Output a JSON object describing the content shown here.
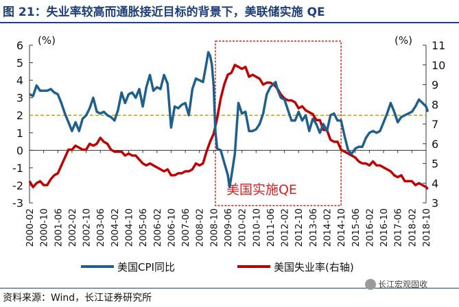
{
  "title": "图 21：失业率较高而通胀接近目标的背景下，美联储实施 QE",
  "source": "资料来源：Wind，长江证券研究所",
  "watermark": "长江宏观固收",
  "chart_data": {
    "type": "line",
    "left_axis": {
      "unit": "(%)",
      "min": -3,
      "max": 6,
      "ticks": [
        -3,
        -2,
        -1,
        0,
        1,
        2,
        3,
        4,
        5,
        6
      ]
    },
    "right_axis": {
      "unit": "(%)",
      "min": 3,
      "max": 11,
      "ticks": [
        3,
        4,
        5,
        6,
        7,
        8,
        9,
        10,
        11
      ]
    },
    "x_ticks": [
      "2000-02",
      "2000-10",
      "2001-06",
      "2002-02",
      "2002-10",
      "2003-06",
      "2004-02",
      "2004-10",
      "2005-06",
      "2006-02",
      "2006-10",
      "2007-06",
      "2008-02",
      "2008-10",
      "2009-06",
      "2010-02",
      "2010-10",
      "2011-06",
      "2012-02",
      "2012-10",
      "2013-06",
      "2014-02",
      "2014-10",
      "2015-06",
      "2016-02",
      "2016-10",
      "2017-06",
      "2018-02",
      "2018-10"
    ],
    "reference_line": {
      "value": 2,
      "axis": "left",
      "color": "#c8a000"
    },
    "qe_box": {
      "label": "美国实施QE",
      "start": "2008-11",
      "end": "2014-10",
      "color": "#d81e1e"
    },
    "series": [
      {
        "name": "美国CPI同比",
        "axis": "left",
        "color": "#1f5f8b",
        "points": [
          [
            "2000-02",
            3.2
          ],
          [
            "2000-04",
            3.1
          ],
          [
            "2000-06",
            3.7
          ],
          [
            "2000-08",
            3.4
          ],
          [
            "2000-10",
            3.4
          ],
          [
            "2000-12",
            3.4
          ],
          [
            "2001-02",
            3.5
          ],
          [
            "2001-04",
            3.3
          ],
          [
            "2001-06",
            3.2
          ],
          [
            "2001-08",
            2.7
          ],
          [
            "2001-10",
            2.1
          ],
          [
            "2001-12",
            1.6
          ],
          [
            "2002-02",
            1.1
          ],
          [
            "2002-04",
            1.6
          ],
          [
            "2002-06",
            1.1
          ],
          [
            "2002-08",
            1.8
          ],
          [
            "2002-10",
            2.0
          ],
          [
            "2002-12",
            2.4
          ],
          [
            "2003-02",
            3.0
          ],
          [
            "2003-04",
            2.2
          ],
          [
            "2003-06",
            2.1
          ],
          [
            "2003-08",
            2.2
          ],
          [
            "2003-10",
            2.0
          ],
          [
            "2003-12",
            1.9
          ],
          [
            "2004-02",
            1.7
          ],
          [
            "2004-04",
            2.3
          ],
          [
            "2004-06",
            3.3
          ],
          [
            "2004-08",
            2.7
          ],
          [
            "2004-10",
            3.2
          ],
          [
            "2004-12",
            3.3
          ],
          [
            "2005-02",
            3.0
          ],
          [
            "2005-04",
            3.5
          ],
          [
            "2005-06",
            2.5
          ],
          [
            "2005-08",
            3.6
          ],
          [
            "2005-10",
            4.3
          ],
          [
            "2005-12",
            3.4
          ],
          [
            "2006-02",
            3.6
          ],
          [
            "2006-04",
            3.5
          ],
          [
            "2006-06",
            4.3
          ],
          [
            "2006-08",
            3.8
          ],
          [
            "2006-10",
            1.3
          ],
          [
            "2006-12",
            2.5
          ],
          [
            "2007-02",
            2.4
          ],
          [
            "2007-04",
            2.6
          ],
          [
            "2007-06",
            2.7
          ],
          [
            "2007-08",
            2.0
          ],
          [
            "2007-10",
            3.5
          ],
          [
            "2007-12",
            4.1
          ],
          [
            "2008-02",
            4.0
          ],
          [
            "2008-04",
            3.9
          ],
          [
            "2008-06",
            5.0
          ],
          [
            "2008-07",
            5.6
          ],
          [
            "2008-08",
            5.4
          ],
          [
            "2008-09",
            4.9
          ],
          [
            "2008-10",
            3.7
          ],
          [
            "2008-11",
            1.1
          ],
          [
            "2008-12",
            0.1
          ],
          [
            "2009-02",
            0.0
          ],
          [
            "2009-04",
            -0.7
          ],
          [
            "2009-06",
            -1.4
          ],
          [
            "2009-07",
            -2.1
          ],
          [
            "2009-08",
            -1.5
          ],
          [
            "2009-10",
            -0.2
          ],
          [
            "2009-12",
            2.7
          ],
          [
            "2010-02",
            2.1
          ],
          [
            "2010-04",
            2.2
          ],
          [
            "2010-06",
            1.1
          ],
          [
            "2010-08",
            1.1
          ],
          [
            "2010-10",
            1.2
          ],
          [
            "2010-12",
            1.5
          ],
          [
            "2011-02",
            2.1
          ],
          [
            "2011-04",
            3.2
          ],
          [
            "2011-06",
            3.6
          ],
          [
            "2011-08",
            3.8
          ],
          [
            "2011-09",
            3.9
          ],
          [
            "2011-10",
            3.5
          ],
          [
            "2011-12",
            3.0
          ],
          [
            "2012-02",
            2.9
          ],
          [
            "2012-04",
            2.3
          ],
          [
            "2012-06",
            1.7
          ],
          [
            "2012-08",
            1.7
          ],
          [
            "2012-10",
            2.2
          ],
          [
            "2012-12",
            1.7
          ],
          [
            "2013-02",
            2.0
          ],
          [
            "2013-04",
            1.1
          ],
          [
            "2013-06",
            1.8
          ],
          [
            "2013-08",
            1.5
          ],
          [
            "2013-10",
            1.0
          ],
          [
            "2013-12",
            1.5
          ],
          [
            "2014-02",
            1.1
          ],
          [
            "2014-04",
            2.0
          ],
          [
            "2014-06",
            2.1
          ],
          [
            "2014-08",
            1.7
          ],
          [
            "2014-10",
            1.7
          ],
          [
            "2014-12",
            0.8
          ],
          [
            "2015-02",
            0.0
          ],
          [
            "2015-04",
            -0.2
          ],
          [
            "2015-06",
            0.1
          ],
          [
            "2015-08",
            0.2
          ],
          [
            "2015-10",
            0.2
          ],
          [
            "2015-12",
            0.7
          ],
          [
            "2016-02",
            1.0
          ],
          [
            "2016-04",
            1.1
          ],
          [
            "2016-06",
            1.0
          ],
          [
            "2016-08",
            1.1
          ],
          [
            "2016-10",
            1.6
          ],
          [
            "2016-12",
            2.1
          ],
          [
            "2017-02",
            2.7
          ],
          [
            "2017-04",
            2.2
          ],
          [
            "2017-06",
            1.6
          ],
          [
            "2017-08",
            1.9
          ],
          [
            "2017-10",
            2.0
          ],
          [
            "2017-12",
            2.1
          ],
          [
            "2018-02",
            2.2
          ],
          [
            "2018-04",
            2.5
          ],
          [
            "2018-06",
            2.9
          ],
          [
            "2018-08",
            2.7
          ],
          [
            "2018-10",
            2.5
          ],
          [
            "2018-11",
            2.2
          ]
        ]
      },
      {
        "name": "美国失业率(右轴)",
        "axis": "right",
        "color": "#c00000",
        "points": [
          [
            "2000-02",
            4.1
          ],
          [
            "2000-04",
            3.8
          ],
          [
            "2000-06",
            4.0
          ],
          [
            "2000-08",
            4.1
          ],
          [
            "2000-10",
            3.9
          ],
          [
            "2000-12",
            3.9
          ],
          [
            "2001-02",
            4.2
          ],
          [
            "2001-04",
            4.4
          ],
          [
            "2001-06",
            4.5
          ],
          [
            "2001-08",
            4.9
          ],
          [
            "2001-10",
            5.3
          ],
          [
            "2001-12",
            5.7
          ],
          [
            "2002-02",
            5.7
          ],
          [
            "2002-04",
            5.9
          ],
          [
            "2002-06",
            5.8
          ],
          [
            "2002-08",
            5.7
          ],
          [
            "2002-10",
            5.7
          ],
          [
            "2002-12",
            6.0
          ],
          [
            "2003-02",
            5.9
          ],
          [
            "2003-04",
            6.0
          ],
          [
            "2003-06",
            6.3
          ],
          [
            "2003-08",
            6.1
          ],
          [
            "2003-10",
            6.0
          ],
          [
            "2003-12",
            5.7
          ],
          [
            "2004-02",
            5.6
          ],
          [
            "2004-04",
            5.6
          ],
          [
            "2004-06",
            5.6
          ],
          [
            "2004-08",
            5.4
          ],
          [
            "2004-10",
            5.5
          ],
          [
            "2004-12",
            5.4
          ],
          [
            "2005-02",
            5.4
          ],
          [
            "2005-04",
            5.2
          ],
          [
            "2005-06",
            5.0
          ],
          [
            "2005-08",
            4.9
          ],
          [
            "2005-10",
            5.0
          ],
          [
            "2005-12",
            4.9
          ],
          [
            "2006-02",
            4.8
          ],
          [
            "2006-04",
            4.7
          ],
          [
            "2006-06",
            4.6
          ],
          [
            "2006-08",
            4.7
          ],
          [
            "2006-10",
            4.4
          ],
          [
            "2006-12",
            4.4
          ],
          [
            "2007-02",
            4.5
          ],
          [
            "2007-04",
            4.5
          ],
          [
            "2007-06",
            4.6
          ],
          [
            "2007-08",
            4.6
          ],
          [
            "2007-10",
            4.7
          ],
          [
            "2007-12",
            5.0
          ],
          [
            "2008-02",
            4.9
          ],
          [
            "2008-04",
            5.0
          ],
          [
            "2008-06",
            5.6
          ],
          [
            "2008-08",
            6.1
          ],
          [
            "2008-10",
            6.5
          ],
          [
            "2008-12",
            7.3
          ],
          [
            "2009-02",
            8.3
          ],
          [
            "2009-04",
            9.0
          ],
          [
            "2009-06",
            9.5
          ],
          [
            "2009-08",
            9.6
          ],
          [
            "2009-10",
            10.0
          ],
          [
            "2009-12",
            9.9
          ],
          [
            "2010-02",
            9.8
          ],
          [
            "2010-04",
            9.9
          ],
          [
            "2010-06",
            9.4
          ],
          [
            "2010-08",
            9.5
          ],
          [
            "2010-10",
            9.4
          ],
          [
            "2010-12",
            9.3
          ],
          [
            "2011-02",
            9.0
          ],
          [
            "2011-04",
            9.1
          ],
          [
            "2011-06",
            9.1
          ],
          [
            "2011-08",
            9.0
          ],
          [
            "2011-10",
            8.8
          ],
          [
            "2011-12",
            8.5
          ],
          [
            "2012-02",
            8.3
          ],
          [
            "2012-04",
            8.2
          ],
          [
            "2012-06",
            8.2
          ],
          [
            "2012-08",
            8.1
          ],
          [
            "2012-10",
            7.8
          ],
          [
            "2012-12",
            7.9
          ],
          [
            "2013-02",
            7.7
          ],
          [
            "2013-04",
            7.6
          ],
          [
            "2013-06",
            7.5
          ],
          [
            "2013-08",
            7.2
          ],
          [
            "2013-10",
            7.2
          ],
          [
            "2013-12",
            6.7
          ],
          [
            "2014-02",
            6.7
          ],
          [
            "2014-04",
            6.2
          ],
          [
            "2014-06",
            6.1
          ],
          [
            "2014-08",
            6.1
          ],
          [
            "2014-10",
            5.7
          ],
          [
            "2014-12",
            5.6
          ],
          [
            "2015-02",
            5.5
          ],
          [
            "2015-04",
            5.4
          ],
          [
            "2015-06",
            5.3
          ],
          [
            "2015-08",
            5.1
          ],
          [
            "2015-10",
            5.0
          ],
          [
            "2015-12",
            5.0
          ],
          [
            "2016-02",
            4.9
          ],
          [
            "2016-04",
            5.1
          ],
          [
            "2016-06",
            4.9
          ],
          [
            "2016-08",
            4.9
          ],
          [
            "2016-10",
            4.8
          ],
          [
            "2016-12",
            4.7
          ],
          [
            "2017-02",
            4.6
          ],
          [
            "2017-04",
            4.4
          ],
          [
            "2017-06",
            4.3
          ],
          [
            "2017-08",
            4.4
          ],
          [
            "2017-10",
            4.1
          ],
          [
            "2017-12",
            4.1
          ],
          [
            "2018-02",
            4.1
          ],
          [
            "2018-04",
            3.9
          ],
          [
            "2018-06",
            4.0
          ],
          [
            "2018-08",
            3.9
          ],
          [
            "2018-10",
            3.8
          ],
          [
            "2018-11",
            3.7
          ]
        ]
      }
    ]
  }
}
